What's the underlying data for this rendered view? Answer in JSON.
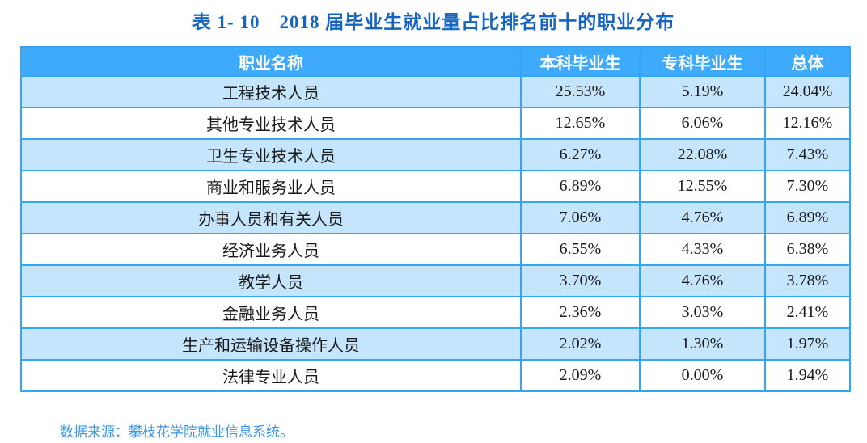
{
  "title": "表 1- 10　2018 届毕业生就业量占比排名前十的职业分布",
  "table": {
    "columns": [
      "职业名称",
      "本科毕业生",
      "专科毕业生",
      "总体"
    ],
    "rows": [
      {
        "cells": [
          "工程技术人员",
          "25.53%",
          "5.19%",
          "24.04%"
        ]
      },
      {
        "cells": [
          "其他专业技术人员",
          "12.65%",
          "6.06%",
          "12.16%"
        ]
      },
      {
        "cells": [
          "卫生专业技术人员",
          "6.27%",
          "22.08%",
          "7.43%"
        ]
      },
      {
        "cells": [
          "商业和服务业人员",
          "6.89%",
          "12.55%",
          "7.30%"
        ]
      },
      {
        "cells": [
          "办事人员和有关人员",
          "7.06%",
          "4.76%",
          "6.89%"
        ]
      },
      {
        "cells": [
          "经济业务人员",
          "6.55%",
          "4.33%",
          "6.38%"
        ]
      },
      {
        "cells": [
          "教学人员",
          "3.70%",
          "4.76%",
          "3.78%"
        ]
      },
      {
        "cells": [
          "金融业务人员",
          "2.36%",
          "3.03%",
          "2.41%"
        ]
      },
      {
        "cells": [
          "生产和运输设备操作人员",
          "2.02%",
          "1.30%",
          "1.97%"
        ]
      },
      {
        "cells": [
          "法律专业人员",
          "2.09%",
          "0.00%",
          "1.94%"
        ]
      }
    ]
  },
  "source_note": "数据来源：攀枝花学院就业信息系统。",
  "colors": {
    "title_blue": "#1565C0",
    "header_bg": "#3FAAFA",
    "header_text": "#FFFFFF",
    "row_alt_bg": "#C5E5FC",
    "row_bg": "#FFFFFF",
    "border_blue": "#35A5F5",
    "cell_text": "#1A1A1A",
    "source_blue": "#3D96E3"
  }
}
